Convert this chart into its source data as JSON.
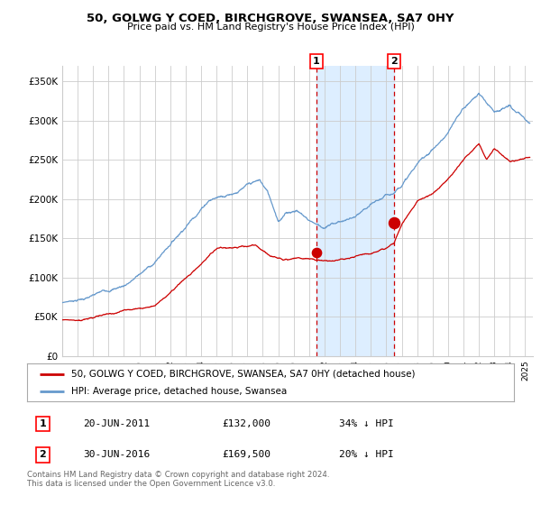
{
  "title": "50, GOLWG Y COED, BIRCHGROVE, SWANSEA, SA7 0HY",
  "subtitle": "Price paid vs. HM Land Registry's House Price Index (HPI)",
  "legend_label_red": "50, GOLWG Y COED, BIRCHGROVE, SWANSEA, SA7 0HY (detached house)",
  "legend_label_blue": "HPI: Average price, detached house, Swansea",
  "annotation1_label": "1",
  "annotation1_date": "20-JUN-2011",
  "annotation1_price": "£132,000",
  "annotation1_pct": "34% ↓ HPI",
  "annotation2_label": "2",
  "annotation2_date": "30-JUN-2016",
  "annotation2_price": "£169,500",
  "annotation2_pct": "20% ↓ HPI",
  "footer": "Contains HM Land Registry data © Crown copyright and database right 2024.\nThis data is licensed under the Open Government Licence v3.0.",
  "red_color": "#cc0000",
  "blue_color": "#6699cc",
  "shading_color": "#ddeeff",
  "grid_color": "#cccccc",
  "bg_color": "#ffffff",
  "ylim": [
    0,
    370000
  ],
  "yticks": [
    0,
    50000,
    100000,
    150000,
    200000,
    250000,
    300000,
    350000
  ],
  "ytick_labels": [
    "£0",
    "£50K",
    "£100K",
    "£150K",
    "£200K",
    "£250K",
    "£300K",
    "£350K"
  ],
  "sale1_x": 2011.47,
  "sale1_y": 132000,
  "sale2_x": 2016.5,
  "sale2_y": 169500,
  "xlim_left": 1995,
  "xlim_right": 2025.5
}
